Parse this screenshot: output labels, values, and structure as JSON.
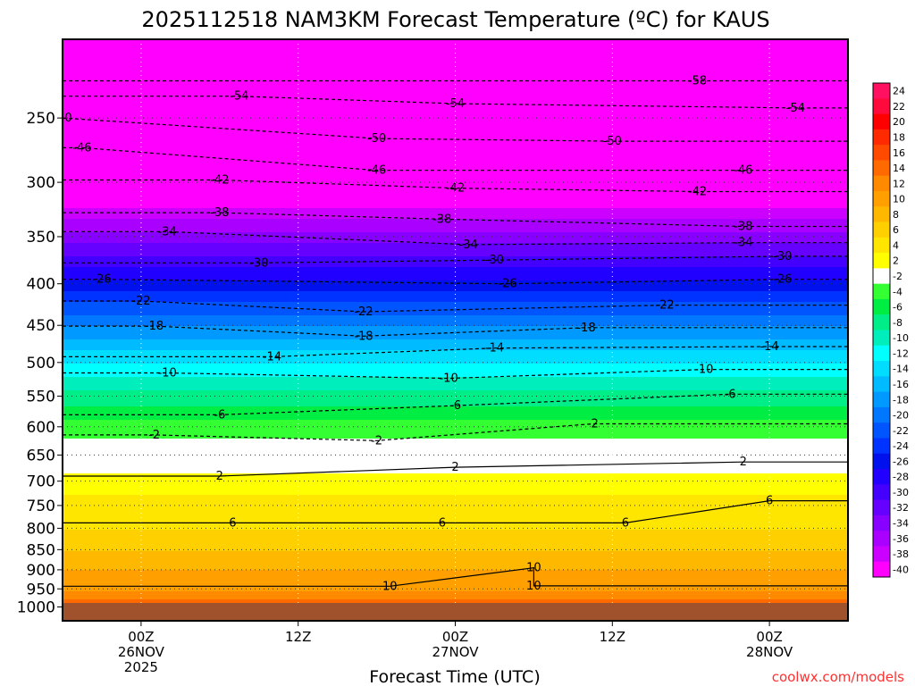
{
  "chart_data": {
    "type": "heatmap",
    "title": "2025112518 NAM3KM Forecast Temperature (ºC) for KAUS",
    "xlabel": "Forecast Time (UTC)",
    "ylabel": "",
    "watermark": "coolwx.com/models",
    "y_scale": "log",
    "y_inverted": true,
    "xlim": [
      -6,
      54
    ],
    "ylim": [
      1040,
      200
    ],
    "x_unit": "hours from 2025-11-25 18Z",
    "y_ticks": [
      250,
      300,
      350,
      400,
      450,
      500,
      550,
      600,
      650,
      700,
      750,
      800,
      850,
      900,
      950,
      1000
    ],
    "x_ticks": [
      {
        "x": 0,
        "lines": [
          "00Z",
          "26NOV",
          "2025"
        ]
      },
      {
        "x": 12,
        "lines": [
          "12Z"
        ]
      },
      {
        "x": 24,
        "lines": [
          "00Z",
          "27NOV"
        ]
      },
      {
        "x": 36,
        "lines": [
          "12Z"
        ]
      },
      {
        "x": 48,
        "lines": [
          "00Z",
          "28NOV"
        ]
      }
    ],
    "grid": true,
    "colorbar": {
      "placement": "right",
      "levels": [
        24,
        22,
        20,
        18,
        16,
        14,
        12,
        10,
        8,
        6,
        4,
        2,
        -2,
        -4,
        -6,
        -8,
        -10,
        -12,
        -14,
        -16,
        -18,
        -20,
        -22,
        -24,
        -26,
        -28,
        -30,
        -32,
        -34,
        -36,
        -38,
        -40
      ],
      "colors": [
        "#ff1060",
        "#ff0a3c",
        "#ff0000",
        "#ff2a00",
        "#ff4a00",
        "#ff6a00",
        "#ff8a00",
        "#ffa000",
        "#ffb800",
        "#ffd000",
        "#ffe600",
        "#ffff00",
        "#ffffff",
        "#33ff33",
        "#00ee44",
        "#00ee88",
        "#00eebb",
        "#00ffff",
        "#00ddff",
        "#00bbff",
        "#0099ff",
        "#0077ff",
        "#0055ff",
        "#0033ff",
        "#0011ee",
        "#2200ff",
        "#4400ff",
        "#6600ff",
        "#8800ff",
        "#aa00ff",
        "#cc00ff",
        "#ff00ff"
      ]
    },
    "profile": {
      "pressure": [
        1000,
        950,
        900,
        850,
        800,
        750,
        700,
        650,
        600,
        550,
        500,
        450,
        400,
        350,
        300,
        250,
        200
      ],
      "temperature": [
        16,
        12,
        10,
        8,
        6,
        5,
        3,
        0,
        -3,
        -7,
        -12,
        -18,
        -25,
        -33,
        -42,
        -50,
        -57
      ]
    },
    "contours": [
      {
        "level": "-58",
        "x": 42.5,
        "p": 225
      },
      {
        "level": "-54",
        "x": 7.5,
        "p": 235
      },
      {
        "level": "-54",
        "x": 24,
        "p": 240
      },
      {
        "level": "-54",
        "x": 50,
        "p": 243
      },
      {
        "level": "-50",
        "x": -6,
        "p": 250
      },
      {
        "level": "-50",
        "x": 18,
        "p": 265
      },
      {
        "level": "-50",
        "x": 36,
        "p": 267
      },
      {
        "level": "-46",
        "x": -4.5,
        "p": 272
      },
      {
        "level": "-46",
        "x": 18,
        "p": 290
      },
      {
        "level": "-46",
        "x": 46,
        "p": 290
      },
      {
        "level": "-42",
        "x": 6,
        "p": 298
      },
      {
        "level": "-42",
        "x": 24,
        "p": 305
      },
      {
        "level": "-42",
        "x": 42.5,
        "p": 308
      },
      {
        "level": "-38",
        "x": 6,
        "p": 327
      },
      {
        "level": "-38",
        "x": 23,
        "p": 333
      },
      {
        "level": "-38",
        "x": 46,
        "p": 340
      },
      {
        "level": "-34",
        "x": 2,
        "p": 345
      },
      {
        "level": "-34",
        "x": 25,
        "p": 358
      },
      {
        "level": "-34",
        "x": 46,
        "p": 356
      },
      {
        "level": "-30",
        "x": 9,
        "p": 377
      },
      {
        "level": "-30",
        "x": 27,
        "p": 374
      },
      {
        "level": "-30",
        "x": 49,
        "p": 370
      },
      {
        "level": "-26",
        "x": -3,
        "p": 395
      },
      {
        "level": "-26",
        "x": 28,
        "p": 400
      },
      {
        "level": "-26",
        "x": 49,
        "p": 395
      },
      {
        "level": "-22",
        "x": 0,
        "p": 420
      },
      {
        "level": "-22",
        "x": 17,
        "p": 433
      },
      {
        "level": "-22",
        "x": 40,
        "p": 425
      },
      {
        "level": "-18",
        "x": 1,
        "p": 451
      },
      {
        "level": "-18",
        "x": 17,
        "p": 464
      },
      {
        "level": "-18",
        "x": 34,
        "p": 453
      },
      {
        "level": "-14",
        "x": 10,
        "p": 492
      },
      {
        "level": "-14",
        "x": 27,
        "p": 480
      },
      {
        "level": "-14",
        "x": 48,
        "p": 478
      },
      {
        "level": "-10",
        "x": 2,
        "p": 515
      },
      {
        "level": "-10",
        "x": 23.5,
        "p": 523
      },
      {
        "level": "-10",
        "x": 43,
        "p": 510
      },
      {
        "level": "-6",
        "x": 6,
        "p": 580
      },
      {
        "level": "-6",
        "x": 24,
        "p": 565
      },
      {
        "level": "-6",
        "x": 45,
        "p": 547
      },
      {
        "level": "-2",
        "x": 1,
        "p": 614
      },
      {
        "level": "-2",
        "x": 18,
        "p": 624
      },
      {
        "level": "-2",
        "x": 34.5,
        "p": 595
      },
      {
        "level": "2",
        "x": 6,
        "p": 690
      },
      {
        "level": "2",
        "x": 24,
        "p": 673
      },
      {
        "level": "2",
        "x": 46,
        "p": 663
      },
      {
        "level": "6",
        "x": 7,
        "p": 788
      },
      {
        "level": "6",
        "x": 23,
        "p": 788
      },
      {
        "level": "6",
        "x": 37,
        "p": 788
      },
      {
        "level": "6",
        "x": 48,
        "p": 740
      },
      {
        "level": "10",
        "x": 19,
        "p": 943
      },
      {
        "level": "10",
        "x": 30,
        "p": 895
      },
      {
        "level": "10",
        "x": 30,
        "p": 942
      }
    ]
  }
}
